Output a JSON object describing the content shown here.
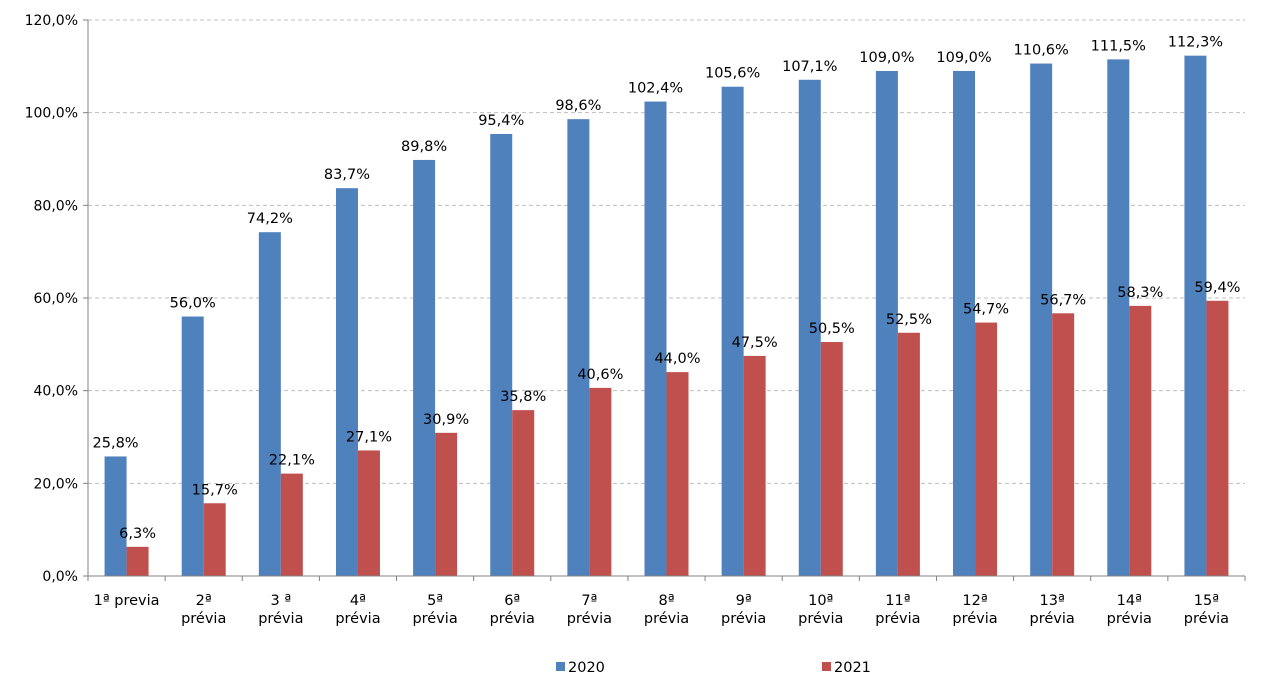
{
  "chart_data": {
    "type": "bar",
    "categories": [
      [
        "1ª previa"
      ],
      [
        "2ª",
        "prévia"
      ],
      [
        "3 ª",
        "prévia"
      ],
      [
        "4ª",
        "prévia"
      ],
      [
        "5ª",
        "prévia"
      ],
      [
        "6ª",
        "prévia"
      ],
      [
        "7ª",
        "prévia"
      ],
      [
        "8ª",
        "prévia"
      ],
      [
        "9ª",
        "prévia"
      ],
      [
        "10ª",
        "prévia"
      ],
      [
        "11ª",
        "prévia"
      ],
      [
        "12ª",
        "prévia"
      ],
      [
        "13ª",
        "prévia"
      ],
      [
        "14ª",
        "prévia"
      ],
      [
        "15ª",
        "prévia"
      ]
    ],
    "series": [
      {
        "name": "2020",
        "color": "#4f81bd",
        "values": [
          25.8,
          56.0,
          74.2,
          83.7,
          89.8,
          95.4,
          98.6,
          102.4,
          105.6,
          107.1,
          109.0,
          109.0,
          110.6,
          111.5,
          112.3
        ],
        "labels": [
          "25,8%",
          "56,0%",
          "74,2%",
          "83,7%",
          "89,8%",
          "95,4%",
          "98,6%",
          "102,4%",
          "105,6%",
          "107,1%",
          "109,0%",
          "109,0%",
          "110,6%",
          "111,5%",
          "112,3%"
        ]
      },
      {
        "name": "2021",
        "color": "#c0504d",
        "values": [
          6.3,
          15.7,
          22.1,
          27.1,
          30.9,
          35.8,
          40.6,
          44.0,
          47.5,
          50.5,
          52.5,
          54.7,
          56.7,
          58.3,
          59.4
        ],
        "labels": [
          "6,3%",
          "15,7%",
          "22,1%",
          "27,1%",
          "30,9%",
          "35,8%",
          "40,6%",
          "44,0%",
          "47,5%",
          "50,5%",
          "52,5%",
          "54,7%",
          "56,7%",
          "58,3%",
          "59,4%"
        ]
      }
    ],
    "yticks": [
      "0,0%",
      "20,0%",
      "40,0%",
      "60,0%",
      "80,0%",
      "100,0%",
      "120,0%"
    ],
    "ylim": [
      0,
      120
    ],
    "grid": true,
    "legend_position": "bottom",
    "title": "",
    "xlabel": "",
    "ylabel": ""
  }
}
